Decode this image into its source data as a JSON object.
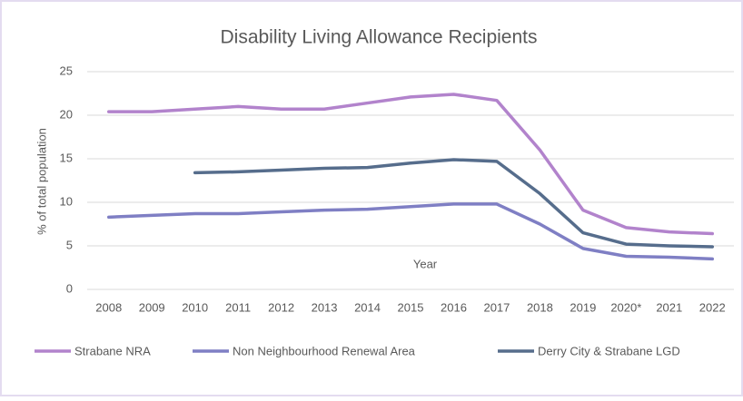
{
  "chart_data": {
    "type": "line",
    "title": "Disability Living Allowance Recipients",
    "x_label": "Year",
    "y_label": "% of total population",
    "categories": [
      "2008",
      "2009",
      "2010",
      "2011",
      "2012",
      "2013",
      "2014",
      "2015",
      "2016",
      "2017",
      "2018",
      "2019",
      "2020*",
      "2021",
      "2022"
    ],
    "series": [
      {
        "name": "Strabane NRA",
        "color": "#b283cc",
        "values": [
          20.4,
          20.4,
          20.7,
          21.0,
          20.7,
          20.7,
          21.4,
          22.1,
          22.4,
          21.7,
          16.0,
          9.1,
          7.1,
          6.6,
          6.4
        ]
      },
      {
        "name": "Non Neighbourhood Renewal Area",
        "color": "#7f7fc4",
        "values": [
          8.3,
          8.5,
          8.7,
          8.7,
          8.9,
          9.1,
          9.2,
          9.5,
          9.8,
          9.8,
          7.5,
          4.7,
          3.8,
          3.7,
          3.5
        ]
      },
      {
        "name": "Derry City & Strabane LGD",
        "color": "#566d8c",
        "values": [
          null,
          null,
          13.4,
          13.5,
          13.7,
          13.9,
          14.0,
          14.5,
          14.9,
          14.7,
          11.0,
          6.5,
          5.2,
          5.0,
          4.9
        ]
      }
    ],
    "ylim": [
      0,
      25
    ],
    "yticks": [
      0,
      5,
      10,
      15,
      20,
      25
    ],
    "grid": true,
    "legend": "bottom"
  }
}
